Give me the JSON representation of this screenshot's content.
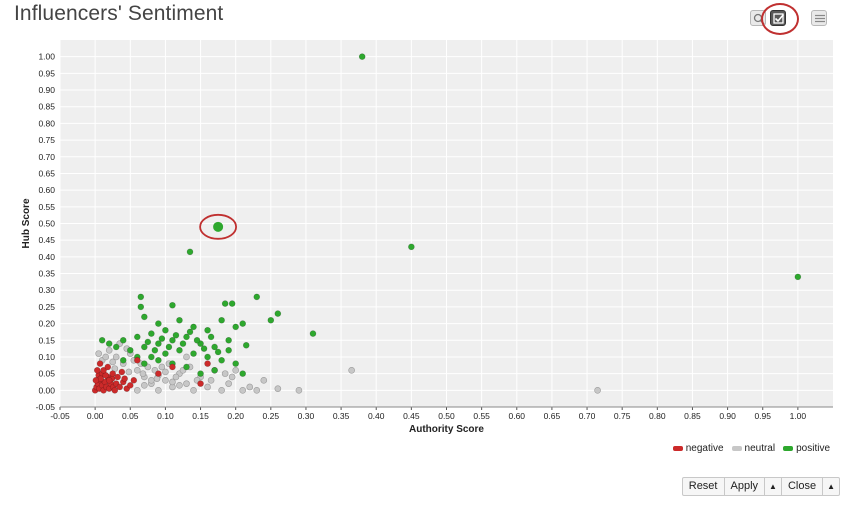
{
  "page_title": "Influencers' Sentiment",
  "toolbar": {
    "buttons": [
      {
        "icon": "zoom-icon",
        "active": false
      },
      {
        "icon": "select-checkbox-icon",
        "active": true
      },
      {
        "icon": "list-menu-icon",
        "active": false
      }
    ]
  },
  "legend": {
    "items": [
      {
        "label": "negative",
        "color": "#cc2a2a"
      },
      {
        "label": "neutral",
        "color": "#c7c7c7"
      },
      {
        "label": "positive",
        "color": "#2ea82e"
      }
    ]
  },
  "buttons": {
    "reset": "Reset",
    "apply": "Apply",
    "close": "Close",
    "caret": "▲"
  },
  "chart_data": {
    "type": "scatter",
    "xlabel": "Authority Score",
    "ylabel": "Hub Score",
    "xlim": [
      -0.05,
      1.05
    ],
    "ylim": [
      -0.05,
      1.05
    ],
    "x_ticks": [
      "-0.05",
      "0.00",
      "0.05",
      "0.10",
      "0.15",
      "0.20",
      "0.25",
      "0.30",
      "0.35",
      "0.40",
      "0.45",
      "0.50",
      "0.55",
      "0.60",
      "0.65",
      "0.70",
      "0.75",
      "0.80",
      "0.85",
      "0.90",
      "0.95",
      "1.00"
    ],
    "y_ticks": [
      "-0.05",
      "0.00",
      "0.05",
      "0.10",
      "0.15",
      "0.20",
      "0.25",
      "0.30",
      "0.35",
      "0.40",
      "0.45",
      "0.50",
      "0.55",
      "0.60",
      "0.65",
      "0.70",
      "0.75",
      "0.80",
      "0.85",
      "0.90",
      "0.95",
      "1.00"
    ],
    "grid": true,
    "legend_position": "bottom-right",
    "series": [
      {
        "name": "negative",
        "color": "#cc2a2a",
        "points": [
          [
            0.0,
            0.0
          ],
          [
            0.002,
            0.01
          ],
          [
            0.004,
            0.02
          ],
          [
            0.006,
            0.005
          ],
          [
            0.008,
            0.03
          ],
          [
            0.01,
            0.015
          ],
          [
            0.012,
            0.0
          ],
          [
            0.014,
            0.025
          ],
          [
            0.016,
            0.01
          ],
          [
            0.018,
            0.04
          ],
          [
            0.02,
            0.005
          ],
          [
            0.022,
            0.02
          ],
          [
            0.024,
            0.035
          ],
          [
            0.026,
            0.01
          ],
          [
            0.028,
            0.0
          ],
          [
            0.03,
            0.02
          ],
          [
            0.005,
            0.045
          ],
          [
            0.01,
            0.05
          ],
          [
            0.003,
            0.06
          ],
          [
            0.008,
            0.035
          ],
          [
            0.015,
            0.045
          ],
          [
            0.02,
            0.03
          ],
          [
            0.025,
            0.05
          ],
          [
            0.035,
            0.01
          ],
          [
            0.04,
            0.025
          ],
          [
            0.045,
            0.005
          ],
          [
            0.05,
            0.015
          ],
          [
            0.055,
            0.03
          ],
          [
            0.012,
            0.06
          ],
          [
            0.018,
            0.07
          ],
          [
            0.007,
            0.08
          ],
          [
            0.001,
            0.03
          ],
          [
            0.06,
            0.09
          ],
          [
            0.09,
            0.05
          ],
          [
            0.11,
            0.07
          ],
          [
            0.15,
            0.02
          ],
          [
            0.16,
            0.08
          ],
          [
            0.032,
            0.04
          ],
          [
            0.038,
            0.055
          ],
          [
            0.042,
            0.035
          ]
        ]
      },
      {
        "name": "neutral",
        "color": "#c7c7c7",
        "points": [
          [
            0.01,
            0.09
          ],
          [
            0.02,
            0.12
          ],
          [
            0.03,
            0.1
          ],
          [
            0.04,
            0.08
          ],
          [
            0.05,
            0.11
          ],
          [
            0.06,
            0.06
          ],
          [
            0.07,
            0.04
          ],
          [
            0.08,
            0.02
          ],
          [
            0.09,
            0.0
          ],
          [
            0.1,
            0.03
          ],
          [
            0.11,
            0.01
          ],
          [
            0.12,
            0.05
          ],
          [
            0.13,
            0.02
          ],
          [
            0.14,
            0.0
          ],
          [
            0.15,
            0.04
          ],
          [
            0.16,
            0.01
          ],
          [
            0.17,
            0.06
          ],
          [
            0.18,
            0.0
          ],
          [
            0.19,
            0.02
          ],
          [
            0.2,
            0.06
          ],
          [
            0.21,
            0.0
          ],
          [
            0.22,
            0.01
          ],
          [
            0.23,
            0.0
          ],
          [
            0.24,
            0.03
          ],
          [
            0.26,
            0.005
          ],
          [
            0.29,
            0.0
          ],
          [
            0.365,
            0.06
          ],
          [
            0.715,
            0.0
          ],
          [
            0.035,
            0.14
          ],
          [
            0.045,
            0.125
          ],
          [
            0.055,
            0.09
          ],
          [
            0.065,
            0.08
          ],
          [
            0.075,
            0.07
          ],
          [
            0.085,
            0.06
          ],
          [
            0.095,
            0.07
          ],
          [
            0.105,
            0.08
          ],
          [
            0.115,
            0.04
          ],
          [
            0.125,
            0.06
          ],
          [
            0.135,
            0.07
          ],
          [
            0.145,
            0.03
          ],
          [
            0.06,
            0.0
          ],
          [
            0.07,
            0.015
          ],
          [
            0.08,
            0.03
          ],
          [
            0.09,
            0.045
          ],
          [
            0.1,
            0.055
          ],
          [
            0.11,
            0.025
          ],
          [
            0.12,
            0.015
          ],
          [
            0.025,
            0.085
          ],
          [
            0.015,
            0.1
          ],
          [
            0.005,
            0.11
          ],
          [
            0.028,
            0.065
          ],
          [
            0.048,
            0.055
          ],
          [
            0.068,
            0.05
          ],
          [
            0.088,
            0.035
          ],
          [
            0.13,
            0.1
          ],
          [
            0.165,
            0.03
          ],
          [
            0.185,
            0.05
          ],
          [
            0.195,
            0.04
          ]
        ]
      },
      {
        "name": "positive",
        "color": "#2ea82e",
        "points": [
          [
            0.38,
            1.0
          ],
          [
            0.175,
            0.49
          ],
          [
            0.135,
            0.415
          ],
          [
            0.45,
            0.43
          ],
          [
            1.0,
            0.34
          ],
          [
            0.065,
            0.28
          ],
          [
            0.065,
            0.25
          ],
          [
            0.11,
            0.255
          ],
          [
            0.185,
            0.26
          ],
          [
            0.195,
            0.26
          ],
          [
            0.23,
            0.28
          ],
          [
            0.26,
            0.23
          ],
          [
            0.25,
            0.21
          ],
          [
            0.21,
            0.2
          ],
          [
            0.31,
            0.17
          ],
          [
            0.07,
            0.22
          ],
          [
            0.09,
            0.2
          ],
          [
            0.12,
            0.21
          ],
          [
            0.14,
            0.19
          ],
          [
            0.16,
            0.18
          ],
          [
            0.18,
            0.21
          ],
          [
            0.2,
            0.19
          ],
          [
            0.1,
            0.18
          ],
          [
            0.08,
            0.17
          ],
          [
            0.06,
            0.16
          ],
          [
            0.04,
            0.15
          ],
          [
            0.02,
            0.14
          ],
          [
            0.01,
            0.15
          ],
          [
            0.03,
            0.13
          ],
          [
            0.05,
            0.12
          ],
          [
            0.07,
            0.13
          ],
          [
            0.09,
            0.14
          ],
          [
            0.11,
            0.15
          ],
          [
            0.13,
            0.16
          ],
          [
            0.15,
            0.14
          ],
          [
            0.17,
            0.13
          ],
          [
            0.19,
            0.12
          ],
          [
            0.12,
            0.12
          ],
          [
            0.1,
            0.11
          ],
          [
            0.08,
            0.1
          ],
          [
            0.06,
            0.1
          ],
          [
            0.04,
            0.09
          ],
          [
            0.14,
            0.11
          ],
          [
            0.16,
            0.1
          ],
          [
            0.18,
            0.09
          ],
          [
            0.2,
            0.08
          ],
          [
            0.13,
            0.07
          ],
          [
            0.11,
            0.08
          ],
          [
            0.09,
            0.09
          ],
          [
            0.07,
            0.08
          ],
          [
            0.085,
            0.12
          ],
          [
            0.105,
            0.13
          ],
          [
            0.125,
            0.14
          ],
          [
            0.145,
            0.15
          ],
          [
            0.165,
            0.16
          ],
          [
            0.075,
            0.145
          ],
          [
            0.095,
            0.155
          ],
          [
            0.115,
            0.165
          ],
          [
            0.135,
            0.175
          ],
          [
            0.155,
            0.125
          ],
          [
            0.175,
            0.115
          ],
          [
            0.21,
            0.05
          ],
          [
            0.17,
            0.06
          ],
          [
            0.15,
            0.05
          ],
          [
            0.19,
            0.15
          ],
          [
            0.215,
            0.135
          ]
        ]
      }
    ]
  }
}
